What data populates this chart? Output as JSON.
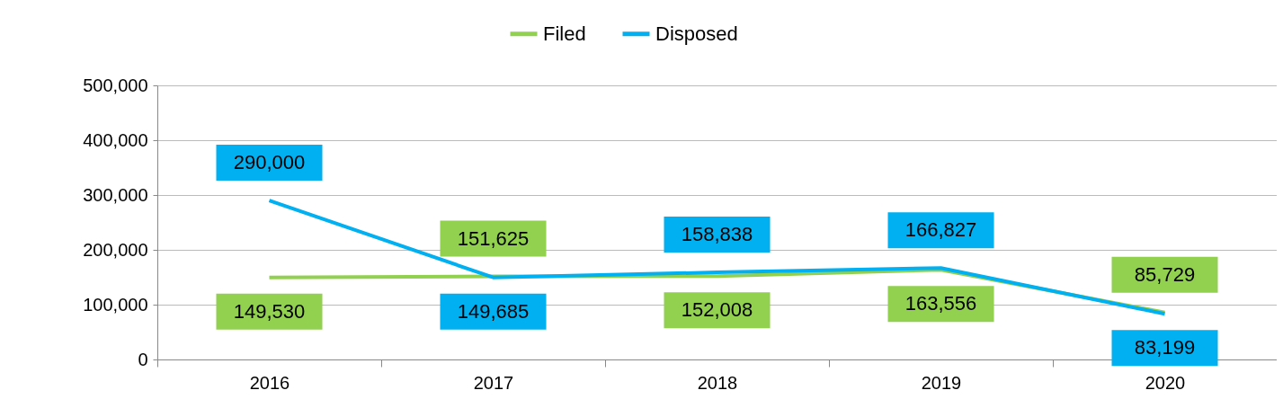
{
  "chart_data": {
    "type": "line",
    "categories": [
      "2016",
      "2017",
      "2018",
      "2019",
      "2020"
    ],
    "series": [
      {
        "name": "Filed",
        "color": "#92d050",
        "values": [
          149530,
          151625,
          152008,
          163556,
          85729
        ],
        "value_labels": [
          "149,530",
          "151,625",
          "152,008",
          "163,556",
          "85,729"
        ]
      },
      {
        "name": "Disposed",
        "color": "#00b0f0",
        "values": [
          290000,
          149685,
          158838,
          166827,
          83199
        ],
        "value_labels": [
          "290,000",
          "149,685",
          "158,838",
          "166,827",
          "83,199"
        ]
      }
    ],
    "ylim": [
      0,
      500000
    ],
    "yticks": [
      0,
      {
        "value": 100000,
        "label": "100,000"
      },
      {
        "value": 200000,
        "label": "200,000"
      },
      {
        "value": 300000,
        "label": "300,000"
      },
      {
        "value": 400000,
        "label": "400,000"
      },
      {
        "value": 500000,
        "label": "500,000"
      }
    ],
    "grid": "y",
    "legend": "top"
  }
}
